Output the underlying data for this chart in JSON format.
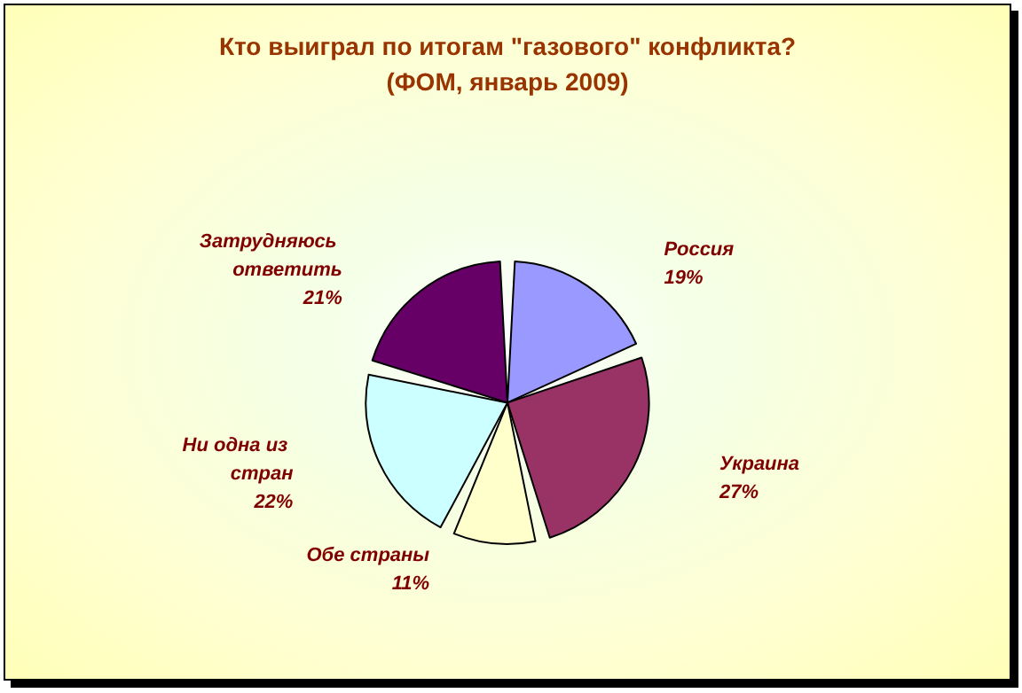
{
  "chart_data": {
    "type": "pie",
    "title": "Кто выиграл по итогам \"газового\" конфликта?\n(ФОМ, январь 2009)",
    "categories": [
      "Россия",
      "Украина",
      "Обе страны",
      "Ни одна из стран",
      "Затрудняюсь ответить"
    ],
    "values": [
      19,
      27,
      11,
      22,
      21
    ],
    "colors": [
      "#9999ff",
      "#993366",
      "#ffffcc",
      "#ccffff",
      "#660066"
    ],
    "value_labels": [
      "19%",
      "27%",
      "11%",
      "22%",
      "21%"
    ],
    "legend": false
  }
}
